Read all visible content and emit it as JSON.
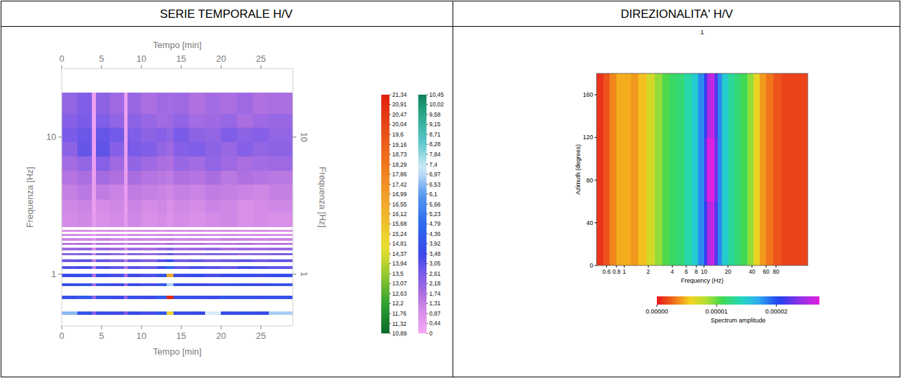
{
  "table": {
    "headers": [
      "SERIE TEMPORALE H/V",
      "DIREZIONALITA' H/V"
    ]
  },
  "chart_data": [
    {
      "type": "heatmap",
      "x_label": "Tempo [min]",
      "y_label": "Frequenza [Hz]",
      "log": "y",
      "xlim": [
        0,
        29
      ],
      "xticks": [
        0,
        5,
        10,
        15,
        20,
        25
      ],
      "ylim": [
        0.42,
        31.6
      ],
      "yticks": [
        1,
        10
      ],
      "x_edges": [
        0,
        2,
        3.8,
        4.3,
        6,
        7.8,
        8.3,
        10,
        12,
        13.2,
        14,
        16,
        18,
        20,
        22,
        24,
        26,
        29
      ],
      "rows": [
        {
          "y_low": 14.8,
          "y_high": 21,
          "values": [
            2.2,
            2.5,
            0.3,
            2.3,
            2.0,
            0.3,
            2.1,
            1.8,
            2.0,
            1.9,
            2.0,
            1.7,
            1.9,
            1.8,
            2.0,
            1.7,
            1.8
          ]
        },
        {
          "y_low": 11.7,
          "y_high": 14.8,
          "values": [
            2.4,
            2.6,
            0.3,
            2.5,
            2.2,
            0.3,
            2.3,
            2.1,
            1.9,
            2.0,
            2.2,
            1.9,
            2.0,
            2.1,
            1.8,
            2.0,
            2.1
          ]
        },
        {
          "y_low": 9.2,
          "y_high": 11.7,
          "values": [
            2.6,
            2.8,
            0.4,
            2.9,
            2.7,
            0.3,
            2.5,
            2.3,
            2.4,
            2.2,
            2.6,
            2.3,
            2.2,
            2.5,
            2.3,
            2.4,
            2.2
          ]
        },
        {
          "y_low": 7.2,
          "y_high": 9.2,
          "values": [
            2.3,
            2.9,
            0.4,
            3.0,
            2.4,
            0.4,
            2.6,
            2.5,
            2.2,
            2.0,
            2.4,
            2.5,
            2.3,
            2.1,
            2.4,
            2.2,
            2.3
          ]
        },
        {
          "y_low": 5.7,
          "y_high": 7.2,
          "values": [
            1.9,
            2.2,
            0.4,
            2.4,
            2.0,
            0.4,
            2.2,
            2.0,
            1.8,
            1.7,
            2.1,
            1.9,
            2.2,
            2.0,
            1.8,
            1.9,
            2.0
          ]
        },
        {
          "y_low": 4.5,
          "y_high": 5.7,
          "values": [
            1.6,
            1.8,
            0.4,
            1.9,
            1.7,
            0.4,
            1.8,
            1.6,
            1.5,
            1.4,
            1.7,
            1.6,
            1.8,
            1.5,
            1.7,
            1.6,
            1.5
          ]
        },
        {
          "y_low": 3.5,
          "y_high": 4.5,
          "values": [
            1.3,
            1.5,
            0.4,
            1.4,
            1.2,
            0.4,
            1.4,
            1.3,
            1.2,
            1.1,
            1.3,
            1.2,
            1.4,
            1.3,
            1.2,
            1.1,
            1.3
          ]
        },
        {
          "y_low": 2.8,
          "y_high": 3.5,
          "values": [
            1.1,
            1.2,
            0.4,
            1.0,
            1.1,
            0.4,
            1.2,
            1.0,
            1.1,
            0.9,
            1.1,
            1.0,
            1.2,
            1.1,
            0.9,
            1.0,
            1.1
          ]
        },
        {
          "y_low": 2.2,
          "y_high": 2.8,
          "values": [
            1.0,
            1.1,
            0.5,
            0.9,
            1.0,
            0.5,
            1.1,
            0.9,
            1.0,
            0.8,
            1.0,
            0.9,
            1.0,
            1.1,
            0.9,
            1.0,
            0.9
          ]
        },
        {
          "y_low": 2.03,
          "y_high": 2.11,
          "values": [
            0.8,
            0.9,
            0.5,
            0.8,
            0.9,
            0.5,
            0.8,
            0.9,
            0.8,
            0.9,
            0.8,
            0.9,
            0.8,
            0.9,
            0.8,
            0.9,
            0.8
          ]
        },
        {
          "y_low": 1.89,
          "y_high": 1.97,
          "values": [
            1.0,
            0.9,
            0.6,
            1.0,
            0.9,
            0.6,
            1.0,
            0.9,
            1.0,
            1.1,
            0.9,
            1.0,
            0.9,
            1.0,
            0.9,
            1.0,
            0.9
          ]
        },
        {
          "y_low": 1.76,
          "y_high": 1.84,
          "values": [
            1.2,
            1.1,
            0.7,
            1.3,
            1.1,
            0.7,
            1.2,
            1.1,
            1.2,
            1.3,
            1.1,
            1.2,
            1.1,
            1.3,
            1.2,
            1.1,
            1.2
          ]
        },
        {
          "y_low": 1.63,
          "y_high": 1.7,
          "values": [
            1.5,
            1.7,
            0.9,
            1.6,
            1.4,
            0.9,
            1.5,
            1.6,
            1.4,
            1.8,
            1.5,
            1.6,
            1.4,
            1.5,
            1.7,
            1.4,
            1.5
          ]
        },
        {
          "y_low": 1.5,
          "y_high": 1.57,
          "values": [
            2.0,
            2.2,
            1.0,
            2.1,
            1.9,
            1.0,
            2.0,
            1.8,
            2.1,
            2.4,
            1.9,
            2.0,
            2.2,
            1.8,
            2.0,
            1.9,
            2.1
          ]
        },
        {
          "y_low": 1.37,
          "y_high": 1.43,
          "values": [
            2.4,
            2.6,
            1.2,
            2.7,
            2.3,
            1.2,
            2.5,
            2.2,
            2.6,
            3.0,
            2.4,
            2.3,
            2.6,
            2.5,
            2.2,
            2.4,
            2.6
          ]
        },
        {
          "y_low": 1.23,
          "y_high": 1.29,
          "values": [
            2.8,
            3.0,
            1.4,
            2.9,
            2.6,
            1.4,
            2.8,
            2.5,
            3.1,
            3.8,
            2.7,
            2.9,
            2.6,
            2.8,
            3.0,
            2.7,
            2.9
          ]
        },
        {
          "y_low": 1.09,
          "y_high": 1.15,
          "values": [
            3.2,
            3.4,
            1.6,
            3.3,
            3.0,
            1.6,
            3.1,
            2.9,
            3.5,
            4.6,
            3.0,
            3.3,
            3.1,
            2.9,
            3.4,
            3.2,
            3.0
          ]
        },
        {
          "y_low": 0.955,
          "y_high": 1.005,
          "values": [
            3.5,
            3.8,
            1.8,
            3.6,
            3.3,
            1.8,
            3.4,
            3.2,
            3.9,
            16.5,
            3.4,
            3.6,
            3.3,
            3.5,
            3.7,
            3.4,
            3.6
          ]
        },
        {
          "y_low": 0.82,
          "y_high": 0.86,
          "values": [
            3.6,
            3.9,
            2.0,
            3.7,
            3.5,
            2.0,
            3.5,
            3.3,
            4.0,
            6.8,
            3.6,
            3.5,
            3.4,
            3.8,
            3.6,
            3.5,
            3.7
          ]
        },
        {
          "y_low": 0.66,
          "y_high": 0.7,
          "values": [
            3.8,
            4.2,
            2.2,
            3.9,
            3.6,
            2.2,
            3.7,
            3.5,
            4.3,
            21.0,
            3.8,
            3.7,
            3.6,
            4.0,
            3.9,
            3.7,
            3.8
          ]
        },
        {
          "y_low": 0.505,
          "y_high": 0.535,
          "values": [
            6.5,
            3.9,
            2.4,
            3.6,
            3.4,
            2.4,
            3.5,
            3.3,
            4.0,
            15.0,
            3.7,
            3.5,
            7.2,
            3.6,
            3.8,
            3.5,
            6.8
          ]
        }
      ],
      "colorbars": [
        {
          "range": [
            10.89,
            21.34
          ],
          "ticks": [
            {
              "value": 21.34,
              "label": "21,34"
            },
            {
              "value": 20.91,
              "label": "20,91"
            },
            {
              "value": 20.47,
              "label": "20,47"
            },
            {
              "value": 20.04,
              "label": "20,04"
            },
            {
              "value": 19.6,
              "label": "19,6"
            },
            {
              "value": 19.16,
              "label": "19,16"
            },
            {
              "value": 18.73,
              "label": "18,73"
            },
            {
              "value": 18.29,
              "label": "18,29"
            },
            {
              "value": 17.86,
              "label": "17,86"
            },
            {
              "value": 17.42,
              "label": "17,42"
            },
            {
              "value": 16.99,
              "label": "16,99"
            },
            {
              "value": 16.55,
              "label": "16,55"
            },
            {
              "value": 16.12,
              "label": "16,12"
            },
            {
              "value": 15.68,
              "label": "15,68"
            },
            {
              "value": 15.24,
              "label": "15,24"
            },
            {
              "value": 14.81,
              "label": "14,81"
            },
            {
              "value": 14.37,
              "label": "14,37"
            },
            {
              "value": 13.94,
              "label": "13,94"
            },
            {
              "value": 13.5,
              "label": "13,5"
            },
            {
              "value": 13.07,
              "label": "13,07"
            },
            {
              "value": 12.63,
              "label": "12,63"
            },
            {
              "value": 12.2,
              "label": "12,2"
            },
            {
              "value": 11.76,
              "label": "11,76"
            },
            {
              "value": 11.32,
              "label": "11,32"
            },
            {
              "value": 10.89,
              "label": "10,89"
            }
          ]
        },
        {
          "range": [
            0,
            10.45
          ],
          "ticks": [
            {
              "value": 10.45,
              "label": "10,45"
            },
            {
              "value": 10.02,
              "label": "10,02"
            },
            {
              "value": 9.58,
              "label": "9,58"
            },
            {
              "value": 9.15,
              "label": "9,15"
            },
            {
              "value": 8.71,
              "label": "8,71"
            },
            {
              "value": 8.28,
              "label": "8,28"
            },
            {
              "value": 7.84,
              "label": "7,84"
            },
            {
              "value": 7.4,
              "label": "7,4"
            },
            {
              "value": 6.97,
              "label": "6,97"
            },
            {
              "value": 6.53,
              "label": "6,53"
            },
            {
              "value": 6.1,
              "label": "6,1"
            },
            {
              "value": 5.66,
              "label": "5,66"
            },
            {
              "value": 5.23,
              "label": "5,23"
            },
            {
              "value": 4.79,
              "label": "4,79"
            },
            {
              "value": 4.36,
              "label": "4,36"
            },
            {
              "value": 3.92,
              "label": "3,92"
            },
            {
              "value": 3.48,
              "label": "3,48"
            },
            {
              "value": 3.05,
              "label": "3,05"
            },
            {
              "value": 2.61,
              "label": "2,61"
            },
            {
              "value": 2.18,
              "label": "2,18"
            },
            {
              "value": 1.74,
              "label": "1,74"
            },
            {
              "value": 1.31,
              "label": "1,31"
            },
            {
              "value": 0.87,
              "label": "0,87"
            },
            {
              "value": 0.44,
              "label": "0,44"
            },
            0
          ]
        }
      ]
    },
    {
      "type": "heatmap",
      "title": "1",
      "x_label": "Frequency (Hz)",
      "y_label": "Azimuth (degrees)",
      "log": "x",
      "xlim": [
        0.45,
        200
      ],
      "xticks": [
        0.6,
        0.8,
        1,
        2,
        4,
        6,
        8,
        10,
        20,
        40,
        60,
        80
      ],
      "ylim": [
        0,
        180
      ],
      "yticks": [
        0,
        40,
        80,
        120,
        160
      ],
      "x_edges": [
        0.45,
        0.55,
        0.65,
        0.8,
        1,
        1.2,
        1.5,
        1.9,
        2.4,
        3,
        3.7,
        4.6,
        5.7,
        7,
        8.5,
        10,
        11,
        12,
        13.5,
        15,
        17,
        20,
        24,
        29,
        35,
        42,
        50,
        60,
        75,
        95,
        120,
        200
      ],
      "y_edges": [
        0,
        60,
        120,
        180
      ],
      "cells": [
        [
          1e-06,
          2e-06,
          3.5e-06,
          4.5e-06,
          4.5e-06,
          4e-06,
          5e-06,
          7e-06,
          9e-06,
          1.05e-05,
          1.15e-05,
          1.2e-05,
          1.35e-05,
          1.5e-05,
          1.8e-05,
          2.1e-05,
          2.5e-05,
          2.6e-05,
          2.2e-05,
          1.8e-05,
          1.5e-05,
          1.3e-05,
          1.2e-05,
          1.1e-05,
          9e-06,
          6e-06,
          4e-06,
          3e-06,
          2e-06,
          1.5e-06,
          1.5e-06
        ],
        [
          1e-06,
          2e-06,
          3.5e-06,
          4.5e-06,
          4.5e-06,
          4e-06,
          5e-06,
          7e-06,
          9e-06,
          1.05e-05,
          1.15e-05,
          1.2e-05,
          1.35e-05,
          1.5e-05,
          1.8e-05,
          2.2e-05,
          2.7e-05,
          2.7e-05,
          2.3e-05,
          1.8e-05,
          1.5e-05,
          1.3e-05,
          1.2e-05,
          1.1e-05,
          9e-06,
          6e-06,
          4e-06,
          3e-06,
          2e-06,
          1.5e-06,
          1.5e-06
        ],
        [
          1e-06,
          2e-06,
          3.5e-06,
          4.5e-06,
          4.5e-06,
          4e-06,
          5e-06,
          7e-06,
          9e-06,
          1.05e-05,
          1.15e-05,
          1.2e-05,
          1.35e-05,
          1.5e-05,
          1.8e-05,
          2.1e-05,
          2.5e-05,
          2.6e-05,
          2.2e-05,
          1.8e-05,
          1.5e-05,
          1.3e-05,
          1.2e-05,
          1.1e-05,
          9e-06,
          6e-06,
          4e-06,
          3e-06,
          2e-06,
          1.5e-06,
          1.5e-06
        ]
      ],
      "colorbar": {
        "label": "Spectrum amplitude",
        "range": [
          0,
          2.72e-05
        ],
        "ticks": [
          {
            "value": 0,
            "label": "0.00000"
          },
          {
            "value": 1e-05,
            "label": "0.00001"
          },
          {
            "value": 2e-05,
            "label": "0.00002"
          }
        ]
      }
    }
  ]
}
